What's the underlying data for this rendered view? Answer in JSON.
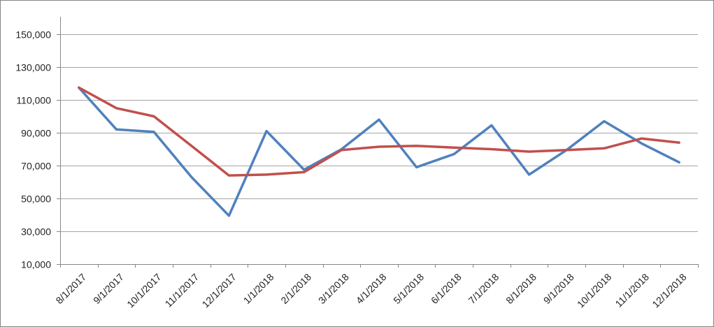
{
  "chart_data": {
    "type": "line",
    "categories": [
      "8/1/2017",
      "9/1/2017",
      "10/1/2017",
      "11/1/2017",
      "12/1/2017",
      "1/1/2018",
      "2/1/2018",
      "3/1/2018",
      "4/1/2018",
      "5/1/2018",
      "6/1/2018",
      "7/1/2018",
      "8/1/2018",
      "9/1/2018",
      "10/1/2018",
      "11/1/2018",
      "12/1/2018"
    ],
    "ylim": [
      10000,
      150000
    ],
    "yticks": [
      10000,
      30000,
      50000,
      70000,
      90000,
      110000,
      130000,
      150000
    ],
    "ytick_labels": [
      "10,000",
      "30,000",
      "50,000",
      "70,000",
      "90,000",
      "110,000",
      "130,000",
      "150,000"
    ],
    "grid": true,
    "legend": "none",
    "series": [
      {
        "color": "#4f81bd",
        "values": [
          117500,
          92000,
          90500,
          63000,
          39500,
          91000,
          67500,
          80000,
          98000,
          69000,
          77000,
          94500,
          64500,
          79500,
          97000,
          83500,
          72000
        ]
      },
      {
        "color": "#c0504d",
        "values": [
          117500,
          105000,
          100000,
          82000,
          64000,
          64500,
          66000,
          79500,
          81500,
          82000,
          81000,
          80000,
          78500,
          79500,
          80500,
          86500,
          84000
        ]
      }
    ]
  }
}
